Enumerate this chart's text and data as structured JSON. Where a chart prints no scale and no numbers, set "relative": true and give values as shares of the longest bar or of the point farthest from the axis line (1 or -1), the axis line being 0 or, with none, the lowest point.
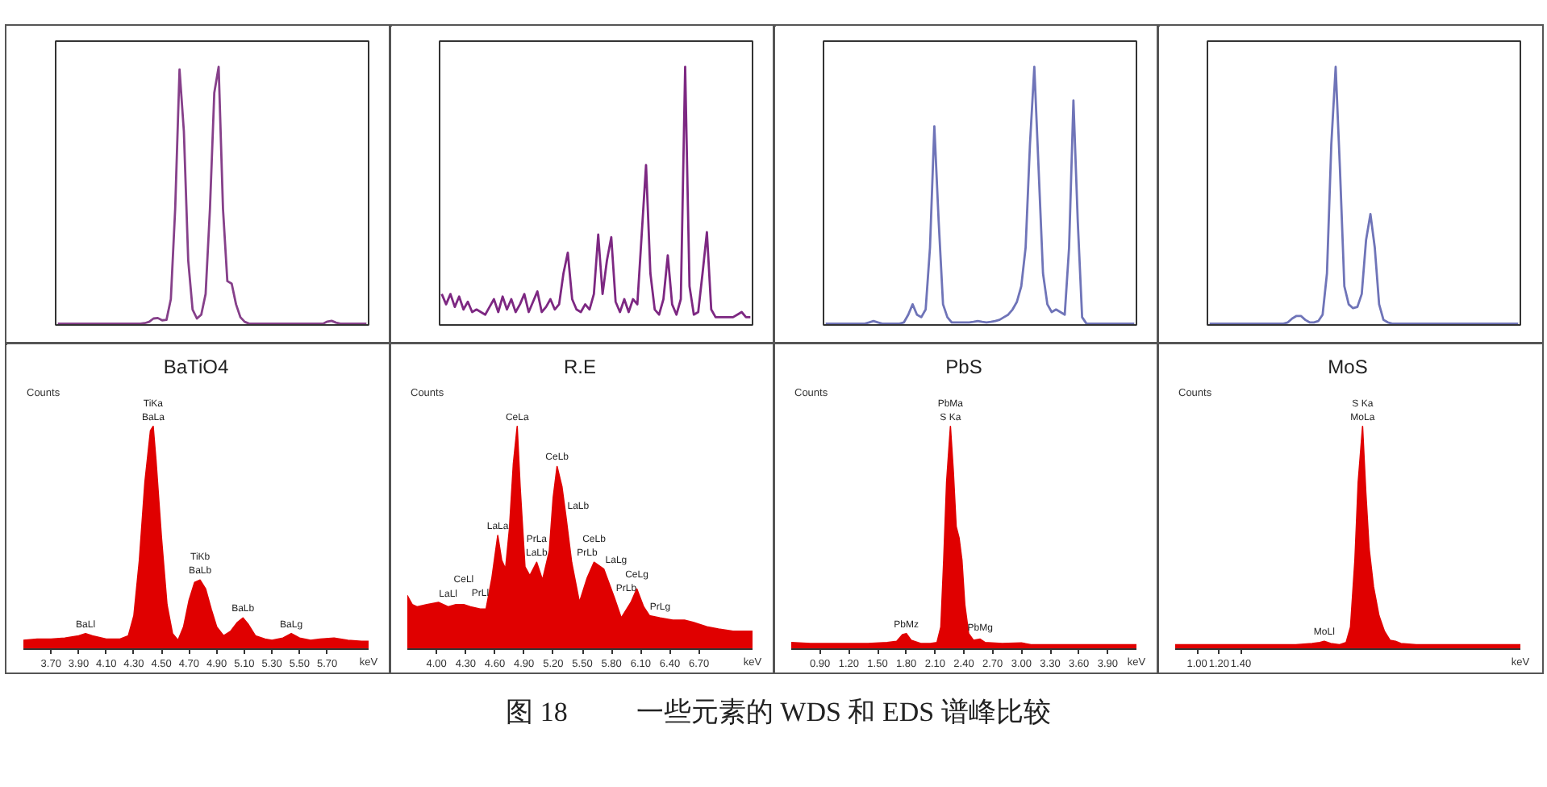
{
  "chart_data": [
    {
      "type": "line",
      "relative": true,
      "tick_labels": false,
      "categories": [
        null,
        null,
        null,
        null,
        null,
        null,
        null,
        null,
        null,
        null,
        null,
        null,
        null,
        null,
        null,
        null,
        null,
        null,
        null,
        null,
        null,
        null,
        null,
        null,
        null,
        null,
        null,
        null,
        null,
        null,
        null,
        null,
        null,
        null,
        null,
        null,
        null,
        null,
        null,
        null,
        null,
        null,
        null,
        null,
        null,
        null,
        null,
        null,
        null,
        null,
        null,
        null,
        null,
        null,
        null,
        null,
        null,
        null,
        null,
        null,
        null,
        null,
        null,
        null,
        null,
        null,
        null,
        null,
        null,
        null,
        null,
        null
      ],
      "series": [
        {
          "color": "#86408a",
          "values": [
            0.005,
            0.005,
            0.005,
            0.005,
            0.005,
            0.005,
            0.005,
            0.005,
            0.005,
            0.005,
            0.005,
            0.005,
            0.005,
            0.005,
            0.005,
            0.005,
            0.005,
            0.005,
            0.005,
            0.005,
            0.007,
            0.012,
            0.025,
            0.027,
            0.018,
            0.02,
            0.1,
            0.45,
            0.99,
            0.75,
            0.25,
            0.06,
            0.025,
            0.04,
            0.12,
            0.45,
            0.9,
            1,
            0.45,
            0.17,
            0.16,
            0.08,
            0.03,
            0.012,
            0.005,
            0.005,
            0.005,
            0.005,
            0.005,
            0.005,
            0.005,
            0.005,
            0.005,
            0.005,
            0.005,
            0.005,
            0.005,
            0.005,
            0.005,
            0.005,
            0.005,
            0.005,
            0.013,
            0.016,
            0.009,
            0.005,
            0.005,
            0.005,
            0.005,
            0.005,
            0.005,
            0.005
          ]
        }
      ]
    },
    {
      "type": "line",
      "relative": true,
      "tick_labels": false,
      "categories": [
        null,
        null,
        null,
        null,
        null,
        null,
        null,
        null,
        null,
        null,
        null,
        null,
        null,
        null,
        null,
        null,
        null,
        null,
        null,
        null,
        null,
        null,
        null,
        null,
        null,
        null,
        null,
        null,
        null,
        null,
        null,
        null,
        null,
        null,
        null,
        null,
        null,
        null,
        null,
        null,
        null,
        null,
        null,
        null,
        null,
        null,
        null,
        null,
        null,
        null,
        null,
        null,
        null,
        null,
        null,
        null,
        null,
        null,
        null,
        null,
        null,
        null,
        null,
        null,
        null,
        null,
        null,
        null,
        null,
        null,
        null,
        null
      ],
      "series": [
        {
          "color": "#7d2882",
          "values": [
            0.12,
            0.08,
            0.12,
            0.07,
            0.11,
            0.06,
            0.09,
            0.05,
            0.06,
            0.05,
            0.04,
            0.07,
            0.1,
            0.05,
            0.11,
            0.06,
            0.1,
            0.05,
            0.08,
            0.12,
            0.05,
            0.09,
            0.13,
            0.05,
            0.07,
            0.1,
            0.06,
            0.08,
            0.2,
            0.28,
            0.1,
            0.06,
            0.05,
            0.08,
            0.06,
            0.12,
            0.35,
            0.12,
            0.25,
            0.34,
            0.09,
            0.05,
            0.1,
            0.05,
            0.1,
            0.08,
            0.35,
            0.62,
            0.2,
            0.06,
            0.04,
            0.1,
            0.27,
            0.08,
            0.04,
            0.1,
            1,
            0.15,
            0.04,
            0.05,
            0.2,
            0.36,
            0.06,
            0.03,
            0.03,
            0.03,
            0.03,
            0.03,
            0.04,
            0.05,
            0.03,
            0.03
          ]
        }
      ]
    },
    {
      "type": "line",
      "relative": true,
      "tick_labels": false,
      "categories": [
        null,
        null,
        null,
        null,
        null,
        null,
        null,
        null,
        null,
        null,
        null,
        null,
        null,
        null,
        null,
        null,
        null,
        null,
        null,
        null,
        null,
        null,
        null,
        null,
        null,
        null,
        null,
        null,
        null,
        null,
        null,
        null,
        null,
        null,
        null,
        null,
        null,
        null,
        null,
        null,
        null,
        null,
        null,
        null,
        null,
        null,
        null,
        null,
        null,
        null,
        null,
        null,
        null,
        null,
        null,
        null,
        null,
        null,
        null,
        null,
        null,
        null,
        null,
        null,
        null,
        null,
        null,
        null,
        null,
        null,
        null,
        null
      ],
      "series": [
        {
          "color": "#6f74b8",
          "values": [
            0.005,
            0.005,
            0.005,
            0.005,
            0.005,
            0.005,
            0.005,
            0.005,
            0.005,
            0.005,
            0.01,
            0.015,
            0.01,
            0.005,
            0.005,
            0.005,
            0.005,
            0.005,
            0.01,
            0.04,
            0.08,
            0.04,
            0.03,
            0.06,
            0.3,
            0.77,
            0.4,
            0.08,
            0.03,
            0.01,
            0.01,
            0.01,
            0.01,
            0.01,
            0.012,
            0.015,
            0.012,
            0.01,
            0.012,
            0.015,
            0.02,
            0.03,
            0.04,
            0.06,
            0.09,
            0.15,
            0.3,
            0.7,
            1,
            0.6,
            0.2,
            0.08,
            0.05,
            0.06,
            0.05,
            0.04,
            0.3,
            0.87,
            0.4,
            0.03,
            0.005,
            0.005,
            0.005,
            0.005,
            0.005,
            0.005,
            0.005,
            0.005,
            0.005,
            0.005,
            0.005,
            0.005
          ]
        }
      ]
    },
    {
      "type": "line",
      "relative": true,
      "tick_labels": false,
      "categories": [
        null,
        null,
        null,
        null,
        null,
        null,
        null,
        null,
        null,
        null,
        null,
        null,
        null,
        null,
        null,
        null,
        null,
        null,
        null,
        null,
        null,
        null,
        null,
        null,
        null,
        null,
        null,
        null,
        null,
        null,
        null,
        null,
        null,
        null,
        null,
        null,
        null,
        null,
        null,
        null,
        null,
        null,
        null,
        null,
        null,
        null,
        null,
        null,
        null,
        null,
        null,
        null,
        null,
        null,
        null,
        null,
        null,
        null,
        null,
        null,
        null,
        null,
        null,
        null,
        null,
        null,
        null,
        null,
        null,
        null,
        null,
        null
      ],
      "series": [
        {
          "color": "#6f74b8",
          "values": [
            0.005,
            0.005,
            0.005,
            0.005,
            0.005,
            0.005,
            0.005,
            0.005,
            0.005,
            0.005,
            0.005,
            0.005,
            0.005,
            0.005,
            0.005,
            0.005,
            0.005,
            0.005,
            0.01,
            0.025,
            0.035,
            0.035,
            0.02,
            0.01,
            0.01,
            0.015,
            0.04,
            0.2,
            0.7,
            1,
            0.6,
            0.15,
            0.08,
            0.065,
            0.07,
            0.12,
            0.33,
            0.43,
            0.3,
            0.08,
            0.02,
            0.01,
            0.005,
            0.005,
            0.005,
            0.005,
            0.005,
            0.005,
            0.005,
            0.005,
            0.005,
            0.005,
            0.005,
            0.005,
            0.005,
            0.005,
            0.005,
            0.005,
            0.005,
            0.005,
            0.005,
            0.005,
            0.005,
            0.005,
            0.005,
            0.005,
            0.005,
            0.005,
            0.005,
            0.005,
            0.005,
            0.005
          ]
        }
      ]
    },
    {
      "type": "area",
      "relative": true,
      "tick_labels": "x",
      "title": "BaTiO4",
      "ylabel": "Counts",
      "xlabel": "keV",
      "xlim": [
        3.5,
        6.0
      ],
      "xticks": [
        {
          "value": 3.7,
          "label": "3.70"
        },
        {
          "value": 3.9,
          "label": "3.90"
        },
        {
          "value": 4.1,
          "label": "4.10"
        },
        {
          "value": 4.3,
          "label": "4.30"
        },
        {
          "value": 4.5,
          "label": "4.50"
        },
        {
          "value": 4.7,
          "label": "4.70"
        },
        {
          "value": 4.9,
          "label": "4.90"
        },
        {
          "value": 5.1,
          "label": "5.10"
        },
        {
          "value": 5.3,
          "label": "5.30"
        },
        {
          "value": 5.5,
          "label": "5.50"
        },
        {
          "value": 5.7,
          "label": "5.70"
        }
      ],
      "series": [
        {
          "color": "#e00000",
          "x": [
            3.5,
            3.6,
            3.7,
            3.8,
            3.9,
            3.95,
            4.0,
            4.1,
            4.2,
            4.26,
            4.3,
            4.34,
            4.38,
            4.42,
            4.44,
            4.46,
            4.5,
            4.54,
            4.58,
            4.62,
            4.66,
            4.7,
            4.74,
            4.78,
            4.82,
            4.86,
            4.9,
            4.95,
            5.0,
            5.05,
            5.09,
            5.13,
            5.18,
            5.25,
            5.3,
            5.38,
            5.44,
            5.5,
            5.58,
            5.65,
            5.75,
            5.85,
            5.95,
            6.0
          ],
          "values": [
            0.04,
            0.045,
            0.045,
            0.05,
            0.06,
            0.07,
            0.06,
            0.045,
            0.045,
            0.06,
            0.15,
            0.4,
            0.75,
            0.98,
            1,
            0.85,
            0.5,
            0.2,
            0.07,
            0.04,
            0.1,
            0.22,
            0.3,
            0.31,
            0.27,
            0.18,
            0.1,
            0.06,
            0.08,
            0.12,
            0.14,
            0.11,
            0.06,
            0.045,
            0.04,
            0.05,
            0.07,
            0.05,
            0.04,
            0.045,
            0.05,
            0.04,
            0.035,
            0.035
          ]
        }
      ],
      "annotations": [
        {
          "text": "TiKa",
          "x": 4.44,
          "y": 1
        },
        {
          "text": "BaLa",
          "x": 4.44,
          "y": 1
        },
        {
          "text": "TiKb",
          "x": 4.78,
          "y": 0.31
        },
        {
          "text": "BaLb",
          "x": 4.78,
          "y": 0.31
        },
        {
          "text": "BaLb",
          "x": 5.09,
          "y": 0.14
        },
        {
          "text": "BaLg",
          "x": 5.44,
          "y": 0.07
        },
        {
          "text": "BaLl",
          "x": 3.95,
          "y": 0.07
        }
      ]
    },
    {
      "type": "area",
      "relative": true,
      "tick_labels": "x",
      "title": "R.E",
      "ylabel": "Counts",
      "xlabel": "keV",
      "xlim": [
        3.7,
        7.25
      ],
      "xticks": [
        {
          "value": 4.0,
          "label": "4.00"
        },
        {
          "value": 4.3,
          "label": "4.30"
        },
        {
          "value": 4.6,
          "label": "4.60"
        },
        {
          "value": 4.9,
          "label": "4.90"
        },
        {
          "value": 5.2,
          "label": "5.20"
        },
        {
          "value": 5.5,
          "label": "5.50"
        },
        {
          "value": 5.8,
          "label": "5.80"
        },
        {
          "value": 6.1,
          "label": "6.10"
        },
        {
          "value": 6.4,
          "label": "6.40"
        },
        {
          "value": 6.7,
          "label": "6.70"
        }
      ],
      "series": [
        {
          "color": "#e00000",
          "x": [
            3.7,
            3.75,
            3.8,
            3.9,
            4.02,
            4.12,
            4.2,
            4.28,
            4.35,
            4.45,
            4.51,
            4.57,
            4.63,
            4.67,
            4.71,
            4.75,
            4.79,
            4.83,
            4.86,
            4.91,
            4.96,
            5.03,
            5.09,
            5.16,
            5.2,
            5.24,
            5.29,
            5.33,
            5.39,
            5.47,
            5.55,
            5.62,
            5.72,
            5.83,
            5.9,
            6.0,
            6.06,
            6.13,
            6.19,
            6.3,
            6.43,
            6.55,
            6.64,
            6.78,
            6.9,
            7.05,
            7.17,
            7.25
          ],
          "values": [
            0.24,
            0.2,
            0.19,
            0.2,
            0.21,
            0.19,
            0.2,
            0.2,
            0.19,
            0.18,
            0.18,
            0.32,
            0.51,
            0.4,
            0.36,
            0.54,
            0.83,
            1,
            0.73,
            0.37,
            0.33,
            0.39,
            0.31,
            0.44,
            0.68,
            0.82,
            0.73,
            0.6,
            0.39,
            0.21,
            0.32,
            0.39,
            0.36,
            0.23,
            0.14,
            0.21,
            0.27,
            0.19,
            0.15,
            0.14,
            0.13,
            0.13,
            0.12,
            0.1,
            0.09,
            0.08,
            0.08,
            0.08
          ]
        }
      ],
      "annotations": [
        {
          "text": "LaLl",
          "x": 4.12,
          "y": 0.19
        },
        {
          "text": "CeLl",
          "x": 4.28,
          "y": 0.2
        },
        {
          "text": "PrLl",
          "x": 4.45,
          "y": 0.18
        },
        {
          "text": "LaLa",
          "x": 4.63,
          "y": 0.51
        },
        {
          "text": "CeLa",
          "x": 4.83,
          "y": 1
        },
        {
          "text": "PrLa",
          "x": 5.03,
          "y": 0.39
        },
        {
          "text": "LaLb",
          "x": 5.03,
          "y": 0.39
        },
        {
          "text": "CeLb",
          "x": 5.24,
          "y": 0.82
        },
        {
          "text": "LaLb",
          "x": 5.33,
          "y": 0.6
        },
        {
          "text": "PrLb",
          "x": 5.55,
          "y": 0.32
        },
        {
          "text": "CeLb",
          "x": 5.62,
          "y": 0.39
        },
        {
          "text": "PrLb",
          "x": 5.83,
          "y": 0.23
        },
        {
          "text": "LaLg",
          "x": 5.72,
          "y": 0.36
        },
        {
          "text": "CeLg",
          "x": 6.06,
          "y": 0.27
        },
        {
          "text": "PrLg",
          "x": 6.3,
          "y": 0.14
        }
      ]
    },
    {
      "type": "area",
      "relative": true,
      "tick_labels": "x",
      "title": "PbS",
      "ylabel": "Counts",
      "xlabel": "keV",
      "xlim": [
        0.6,
        4.2
      ],
      "xticks": [
        {
          "value": 0.9,
          "label": "0.90"
        },
        {
          "value": 1.2,
          "label": "1.20"
        },
        {
          "value": 1.5,
          "label": "1.50"
        },
        {
          "value": 1.8,
          "label": "1.80"
        },
        {
          "value": 2.1,
          "label": "2.10"
        },
        {
          "value": 2.4,
          "label": "2.40"
        },
        {
          "value": 2.7,
          "label": "2.70"
        },
        {
          "value": 3.0,
          "label": "3.00"
        },
        {
          "value": 3.3,
          "label": "3.30"
        },
        {
          "value": 3.6,
          "label": "3.60"
        },
        {
          "value": 3.9,
          "label": "3.90"
        }
      ],
      "series": [
        {
          "color": "#e00000",
          "x": [
            0.6,
            0.8,
            1.0,
            1.2,
            1.4,
            1.6,
            1.7,
            1.76,
            1.8,
            1.85,
            1.95,
            2.05,
            2.12,
            2.16,
            2.19,
            2.22,
            2.26,
            2.29,
            2.32,
            2.35,
            2.38,
            2.41,
            2.45,
            2.5,
            2.57,
            2.62,
            2.8,
            3.0,
            3.1,
            3.4,
            3.7,
            4.0,
            4.2
          ],
          "values": [
            0.03,
            0.025,
            0.025,
            0.025,
            0.025,
            0.03,
            0.035,
            0.065,
            0.07,
            0.04,
            0.025,
            0.025,
            0.03,
            0.1,
            0.4,
            0.75,
            1,
            0.8,
            0.55,
            0.5,
            0.4,
            0.2,
            0.07,
            0.04,
            0.045,
            0.03,
            0.025,
            0.028,
            0.02,
            0.02,
            0.02,
            0.02,
            0.02
          ]
        }
      ],
      "annotations": [
        {
          "text": "PbMa",
          "x": 2.26,
          "y": 1
        },
        {
          "text": "S Ka",
          "x": 2.26,
          "y": 1
        },
        {
          "text": "PbMz",
          "x": 1.8,
          "y": 0.07
        },
        {
          "text": "PbMg",
          "x": 2.57,
          "y": 0.045
        }
      ]
    },
    {
      "type": "area",
      "relative": true,
      "tick_labels": "x",
      "title": "MoS",
      "ylabel": "Counts",
      "xlabel": "keV",
      "xlim": [
        0.8,
        3.95
      ],
      "xticks": [
        {
          "value": 1.0,
          "label": "1.00"
        },
        {
          "value": 1.2,
          "label": "1.20"
        },
        {
          "value": 1.4,
          "label": "1.40"
        }
      ],
      "series": [
        {
          "color": "#e00000",
          "x": [
            0.8,
            1.0,
            1.3,
            1.6,
            1.9,
            2.05,
            2.12,
            2.16,
            2.22,
            2.3,
            2.36,
            2.4,
            2.44,
            2.47,
            2.51,
            2.54,
            2.57,
            2.61,
            2.66,
            2.71,
            2.76,
            2.81,
            2.86,
            3.0,
            3.3,
            3.6,
            3.95
          ],
          "values": [
            0.02,
            0.02,
            0.02,
            0.02,
            0.02,
            0.025,
            0.03,
            0.035,
            0.025,
            0.02,
            0.03,
            0.1,
            0.4,
            0.75,
            1,
            0.7,
            0.45,
            0.28,
            0.15,
            0.08,
            0.04,
            0.035,
            0.025,
            0.02,
            0.02,
            0.02,
            0.02
          ]
        }
      ],
      "annotations": [
        {
          "text": "S Ka",
          "x": 2.51,
          "y": 1
        },
        {
          "text": "MoLa",
          "x": 2.51,
          "y": 1
        },
        {
          "text": "MoLl",
          "x": 2.16,
          "y": 0.035
        },
        "图 18          一些元素的 WDS 和 EDS 谱峰比较"
      ]
    }
  ]
}
